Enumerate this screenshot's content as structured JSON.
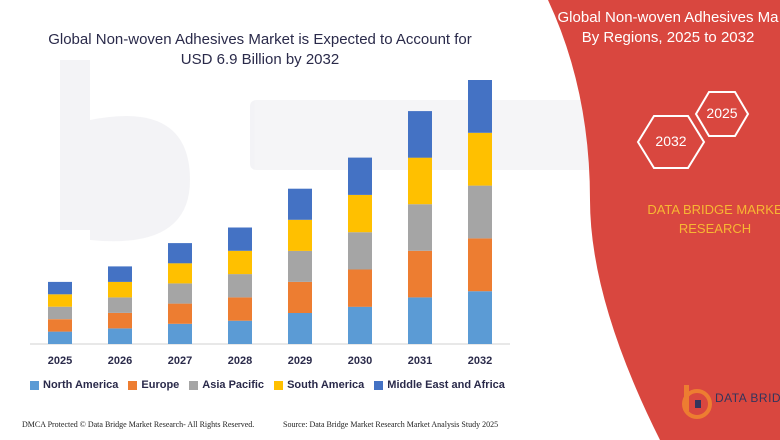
{
  "chart_title": "Global Non-woven Adhesives Market is Expected to Account for USD 6.9 Billion by 2032",
  "panel": {
    "title_line1": "Global Non-woven Adhesives Ma",
    "title_line2": "By Regions, 2025 to 2032",
    "hex_2025": "2025",
    "hex_2032": "2032",
    "brand_line1": "DATA BRIDGE MARKE",
    "brand_line2": "RESEARCH",
    "logo_text": "DATA BRID"
  },
  "footer": {
    "left": "DMCA Protected © Data Bridge Market Research- All Rights Reserved.",
    "right": "Source: Data Bridge Market Research Market Analysis Study 2025"
  },
  "colors": {
    "panel_red": "#d9473f",
    "title_text": "#2a2a4a",
    "brand_yellow": "#f7b733"
  },
  "chart_data": {
    "type": "bar",
    "stacked": true,
    "categories": [
      "2025",
      "2026",
      "2027",
      "2028",
      "2029",
      "2030",
      "2031",
      "2032"
    ],
    "series": [
      {
        "name": "North America",
        "color": "#5b9bd5",
        "values": [
          8,
          10,
          13,
          15,
          20,
          24,
          30,
          34
        ]
      },
      {
        "name": "Europe",
        "color": "#ed7d31",
        "values": [
          8,
          10,
          13,
          15,
          20,
          24,
          30,
          34
        ]
      },
      {
        "name": "Asia Pacific",
        "color": "#a5a5a5",
        "values": [
          8,
          10,
          13,
          15,
          20,
          24,
          30,
          34
        ]
      },
      {
        "name": "South America",
        "color": "#ffc000",
        "values": [
          8,
          10,
          13,
          15,
          20,
          24,
          30,
          34
        ]
      },
      {
        "name": "Middle East and Africa",
        "color": "#4472c4",
        "values": [
          8,
          10,
          13,
          15,
          20,
          24,
          30,
          34
        ]
      }
    ],
    "xlabel": "",
    "ylabel": "",
    "ylim": [
      0,
      170
    ],
    "grid": false,
    "legend_position": "bottom"
  }
}
